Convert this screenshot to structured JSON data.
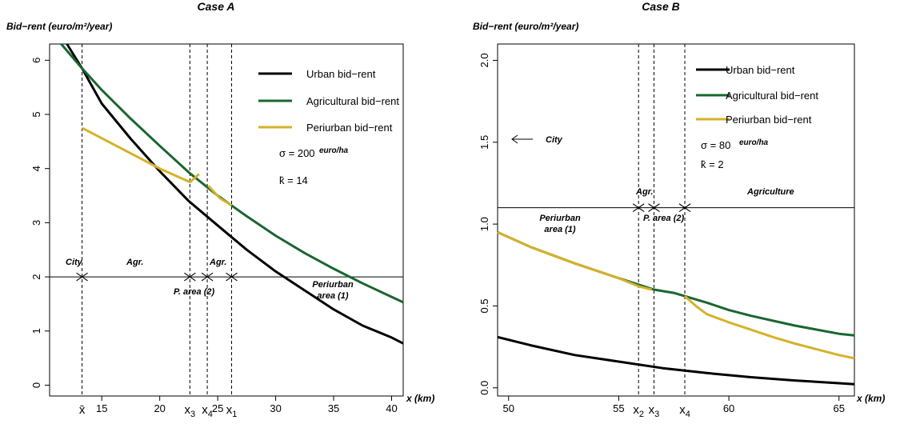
{
  "chart_data": [
    {
      "type": "line",
      "title": "Case A",
      "ylabel": "Bid−rent (euro/m²/year)",
      "xlabel": "x (km)",
      "xlim": [
        10.5,
        41
      ],
      "ylim": [
        -0.2,
        6.3
      ],
      "x_ticks": [
        15,
        20,
        25,
        30,
        35,
        40
      ],
      "y_ticks": [
        0,
        1,
        2,
        3,
        4,
        5,
        6
      ],
      "legend_position": "top-right",
      "series": [
        {
          "name": "Urban bid−rent",
          "color": "#000000",
          "x": [
            12,
            13.3,
            15,
            17.5,
            20,
            22.5,
            25,
            27.5,
            30,
            32.5,
            35,
            37.5,
            40,
            41
          ],
          "y": [
            6.3,
            5.85,
            5.2,
            4.55,
            3.95,
            3.4,
            2.95,
            2.5,
            2.1,
            1.75,
            1.4,
            1.1,
            0.88,
            0.77
          ]
        },
        {
          "name": "Agricultural bid−rent",
          "color": "#1a6630",
          "x": [
            11.5,
            13.3,
            15,
            17.5,
            20,
            22.5,
            25,
            27.5,
            30,
            32.5,
            35,
            37.5,
            40,
            41
          ],
          "y": [
            6.3,
            5.85,
            5.45,
            4.92,
            4.42,
            3.93,
            3.5,
            3.12,
            2.76,
            2.44,
            2.15,
            1.88,
            1.63,
            1.53
          ]
        },
        {
          "name": "Periurban bid−rent",
          "color": "#d4b22a",
          "segments": [
            {
              "x": [
                13.3,
                17.5,
                20,
                22.6,
                23.4
              ],
              "y": [
                4.75,
                4.28,
                4.0,
                3.75,
                3.9
              ]
            },
            {
              "x": [
                24.2,
                25.2,
                26.2
              ],
              "y": [
                3.68,
                3.45,
                3.32
              ]
            }
          ]
        }
      ],
      "vlines": [
        13.3,
        22.6,
        24.1,
        26.2
      ],
      "hline": 2.0,
      "x_markers": [
        {
          "label": "x̄",
          "x": 13.3
        },
        {
          "label": "x3",
          "x": 22.6
        },
        {
          "label": "x4",
          "x": 24.1
        },
        {
          "label": "x1",
          "x": 26.2
        }
      ],
      "zone_labels": [
        "City",
        "Agr.",
        "Agr.",
        "P. area (2)",
        "Periurban",
        "area (1)"
      ],
      "annotations": [
        "σ = 200",
        "euro/ha",
        "k̂ = 14"
      ]
    },
    {
      "type": "line",
      "title": "Case B",
      "ylabel": "Bid−rent (euro/m²/year)",
      "xlabel": "x (km)",
      "xlim": [
        49.5,
        65.7
      ],
      "ylim": [
        -0.05,
        2.1
      ],
      "x_ticks": [
        50,
        55,
        60,
        65
      ],
      "y_ticks": [
        0.0,
        0.5,
        1.0,
        1.5,
        2.0
      ],
      "legend_position": "top-right",
      "series": [
        {
          "name": "Urban bid−rent",
          "color": "#000000",
          "x": [
            49.5,
            51,
            53,
            55,
            57,
            59,
            61,
            63,
            65,
            65.7
          ],
          "y": [
            0.31,
            0.26,
            0.2,
            0.16,
            0.12,
            0.09,
            0.065,
            0.045,
            0.028,
            0.022
          ]
        },
        {
          "name": "Agricultural bid−rent",
          "color": "#1a6630",
          "x": [
            49.5,
            51,
            53,
            55,
            55.9,
            56.6,
            57.5,
            58,
            59,
            60,
            61,
            62,
            63,
            64,
            65,
            65.7
          ],
          "y": [
            0.95,
            0.86,
            0.76,
            0.67,
            0.63,
            0.6,
            0.58,
            0.56,
            0.52,
            0.475,
            0.44,
            0.41,
            0.38,
            0.355,
            0.33,
            0.32
          ]
        },
        {
          "name": "Periurban bid−rent",
          "color": "#d4b22a",
          "segments": [
            {
              "x": [
                49.5,
                51,
                53,
                55,
                55.9,
                56.5
              ],
              "y": [
                0.95,
                0.86,
                0.76,
                0.67,
                0.62,
                0.6
              ]
            },
            {
              "x": [
                58,
                58.5,
                59,
                60,
                61,
                62,
                63,
                64,
                65,
                65.7
              ],
              "y": [
                0.56,
                0.5,
                0.45,
                0.4,
                0.355,
                0.31,
                0.27,
                0.235,
                0.2,
                0.18
              ]
            }
          ]
        }
      ],
      "vlines": [
        55.9,
        56.6,
        58.0
      ],
      "hline": 1.1,
      "x_markers": [
        {
          "label": "x2",
          "x": 55.9
        },
        {
          "label": "x3",
          "x": 56.6
        },
        {
          "label": "x4",
          "x": 58.0
        }
      ],
      "zone_labels": [
        "Agr.",
        "Agriculture",
        "Periurban",
        "area (1)",
        "P. area (2)"
      ],
      "annotations": [
        "σ = 80",
        "euro/ha",
        "k̂ = 2",
        "City"
      ]
    }
  ]
}
